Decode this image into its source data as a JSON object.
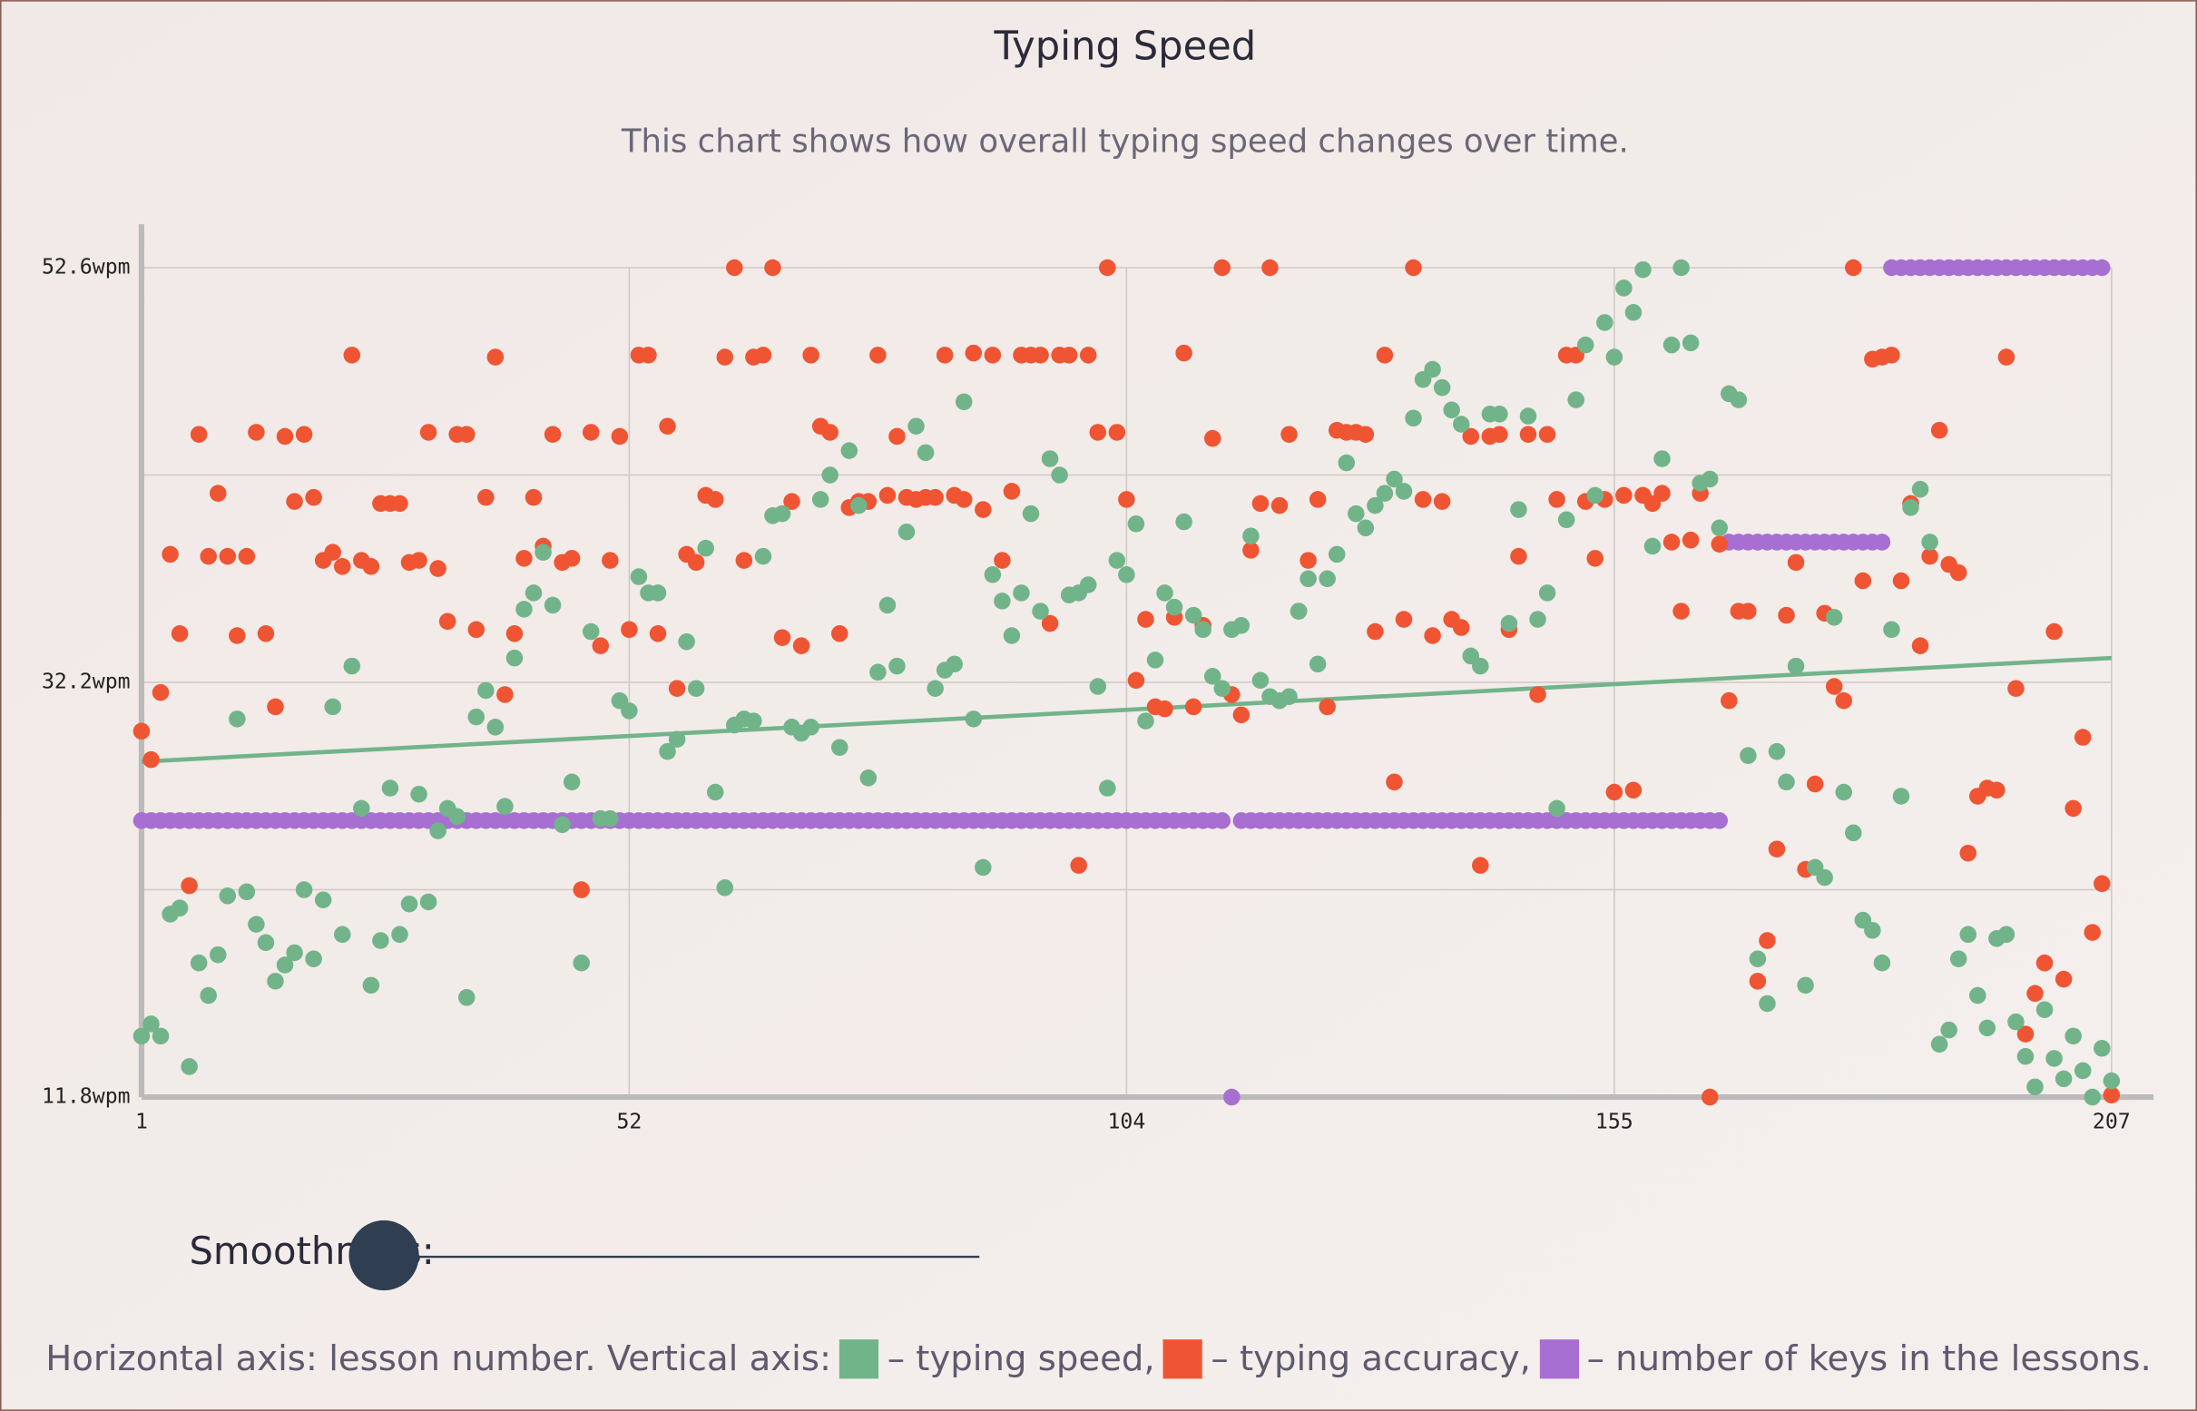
{
  "chart_data": {
    "type": "scatter",
    "title": "Typing Speed",
    "subtitle": "This chart shows how overall typing speed changes over time.",
    "xlim": [
      1,
      207
    ],
    "xticks": [
      1,
      52,
      104,
      155,
      207
    ],
    "ylim": [
      11.8,
      52.6
    ],
    "yticks": [
      {
        "value": 11.8,
        "label": "11.8wpm"
      },
      {
        "value": 32.2,
        "label": "32.2wpm"
      },
      {
        "value": 52.6,
        "label": "52.6wpm"
      }
    ],
    "ygrid": [
      22,
      42.4
    ],
    "grid": true,
    "caption": "Horizontal axis: lesson number. Vertical axis:",
    "series": [
      {
        "name": "typing speed",
        "legend_label": "– typing speed,",
        "color": "#72b48a",
        "trend": [
          28.3,
          33.4
        ],
        "values": [
          14.8,
          15.4,
          14.8,
          20.8,
          21.1,
          13.3,
          18.4,
          16.8,
          18.8,
          21.7,
          30.4,
          21.9,
          20.3,
          19.4,
          17.5,
          18.3,
          18.9,
          22.0,
          18.6,
          21.5,
          31.0,
          19.8,
          33.0,
          26.0,
          17.3,
          19.5,
          27.0,
          19.8,
          21.3,
          26.7,
          21.4,
          24.9,
          26.0,
          25.6,
          16.7,
          30.5,
          31.8,
          30.0,
          26.1,
          33.4,
          35.8,
          36.6,
          38.6,
          36.0,
          25.2,
          27.3,
          18.4,
          34.7,
          25.5,
          25.5,
          31.3,
          30.8,
          37.4,
          36.6,
          36.6,
          28.8,
          29.4,
          34.2,
          31.9,
          38.8,
          26.8,
          22.1,
          30.1,
          30.4,
          30.3,
          38.4,
          40.4,
          40.5,
          30.0,
          29.7,
          30.0,
          41.2,
          42.4,
          29.0,
          43.6,
          40.9,
          27.5,
          32.7,
          36.0,
          33.0,
          39.6,
          44.8,
          43.5,
          31.9,
          32.8,
          33.1,
          46.0,
          30.4,
          23.1,
          37.5,
          36.2,
          34.5,
          36.6,
          40.5,
          35.7,
          43.2,
          42.4,
          36.5,
          36.6,
          37.0,
          32.0,
          27.0,
          38.2,
          37.5,
          40.0,
          30.3,
          33.3,
          36.6,
          35.9,
          40.1,
          35.5,
          34.8,
          32.5,
          31.9,
          34.8,
          35.0,
          39.4,
          32.3,
          31.5,
          31.3,
          31.5,
          35.7,
          37.3,
          33.1,
          37.3,
          38.5,
          43.0,
          40.5,
          39.8,
          40.9,
          41.5,
          42.2,
          41.6,
          45.2,
          47.1,
          47.6,
          46.7,
          45.6,
          44.9,
          33.5,
          33.0,
          45.4,
          45.4,
          35.1,
          40.7,
          45.3,
          35.3,
          36.6,
          26.0,
          40.2,
          46.1,
          48.8,
          41.4,
          49.9,
          48.2,
          51.6,
          50.4,
          52.5,
          38.9,
          43.2,
          48.8,
          52.6,
          48.9,
          42.0,
          42.2,
          39.8,
          46.4,
          46.1,
          28.6,
          18.6,
          16.4,
          28.8,
          27.3,
          33.0,
          17.3,
          23.1,
          22.6,
          35.4,
          26.8,
          24.8,
          20.5,
          20.0,
          18.4,
          34.8,
          26.6,
          40.8,
          41.7,
          39.1,
          14.4,
          15.1,
          18.6,
          19.8,
          16.8,
          15.2,
          19.6,
          19.8,
          15.5,
          13.8,
          12.3,
          16.1,
          13.7,
          12.7,
          14.8,
          13.1,
          11.8,
          14.2,
          12.6
        ]
      },
      {
        "name": "typing accuracy",
        "legend_label": "– typing accuracy,",
        "color": "#ef5533",
        "values": [
          29.8,
          28.4,
          31.7,
          38.5,
          34.6,
          22.2,
          44.4,
          38.4,
          41.5,
          38.4,
          34.5,
          38.4,
          44.5,
          34.6,
          31.0,
          44.3,
          41.1,
          44.4,
          41.3,
          38.2,
          38.6,
          37.9,
          48.3,
          38.2,
          37.9,
          41.0,
          41.0,
          41.0,
          38.1,
          38.2,
          44.5,
          37.8,
          35.2,
          44.4,
          44.4,
          34.8,
          41.3,
          48.2,
          31.6,
          34.6,
          38.3,
          41.3,
          38.9,
          44.4,
          38.1,
          38.3,
          22.0,
          44.5,
          34.0,
          38.2,
          44.3,
          34.8,
          48.3,
          48.3,
          34.6,
          44.8,
          31.9,
          38.5,
          38.1,
          41.4,
          41.2,
          48.2,
          52.6,
          38.2,
          48.2,
          48.3,
          52.6,
          34.4,
          41.1,
          34.0,
          48.3,
          44.8,
          44.5,
          34.6,
          40.8,
          41.1,
          41.1,
          48.3,
          41.4,
          44.3,
          41.3,
          41.2,
          41.3,
          41.3,
          48.3,
          41.4,
          41.2,
          48.4,
          40.7,
          48.3,
          38.2,
          41.6,
          48.3,
          48.3,
          48.3,
          35.1,
          48.3,
          48.3,
          23.2,
          48.3,
          44.5,
          52.6,
          44.5,
          41.2,
          32.3,
          35.3,
          31.0,
          30.9,
          35.4,
          48.4,
          31.0,
          35.0,
          44.2,
          52.6,
          31.6,
          30.6,
          38.7,
          41.0,
          52.6,
          40.9,
          44.4,
          35.7,
          38.2,
          41.2,
          31.0,
          44.6,
          44.5,
          44.5,
          44.4,
          34.7,
          48.3,
          27.3,
          35.3,
          52.6,
          41.2,
          34.5,
          41.1,
          35.3,
          34.9,
          44.3,
          23.2,
          44.3,
          44.4,
          34.8,
          38.4,
          44.4,
          31.6,
          44.4,
          41.2,
          48.3,
          48.3,
          41.1,
          38.3,
          41.2,
          26.8,
          41.4,
          26.9,
          41.4,
          41.0,
          41.5,
          39.1,
          35.7,
          39.2,
          41.5,
          11.8,
          39.0,
          31.3,
          35.7,
          35.7,
          17.5,
          19.5,
          24.0,
          35.5,
          38.1,
          23.0,
          27.2,
          35.6,
          32.0,
          31.3,
          52.6,
          37.2,
          48.1,
          48.2,
          48.3,
          37.2,
          41.0,
          34.0,
          38.4,
          44.6,
          38.0,
          37.6,
          23.8,
          26.6,
          27.0,
          26.9,
          48.2,
          31.9,
          14.9,
          16.9,
          18.4,
          34.7,
          17.6,
          26.0,
          29.5,
          19.9,
          22.3,
          11.9
        ]
      },
      {
        "name": "number of keys in the lessons",
        "legend_label": "– number of keys in the lessons.",
        "color": "#a66fd1",
        "values": [
          25.4,
          25.4,
          25.4,
          25.4,
          25.4,
          25.4,
          25.4,
          25.4,
          25.4,
          25.4,
          25.4,
          25.4,
          25.4,
          25.4,
          25.4,
          25.4,
          25.4,
          25.4,
          25.4,
          25.4,
          25.4,
          25.4,
          25.4,
          25.4,
          25.4,
          25.4,
          25.4,
          25.4,
          25.4,
          25.4,
          25.4,
          25.4,
          25.4,
          25.4,
          25.4,
          25.4,
          25.4,
          25.4,
          25.4,
          25.4,
          25.4,
          25.4,
          25.4,
          25.4,
          25.4,
          25.4,
          25.4,
          25.4,
          25.4,
          25.4,
          25.4,
          25.4,
          25.4,
          25.4,
          25.4,
          25.4,
          25.4,
          25.4,
          25.4,
          25.4,
          25.4,
          25.4,
          25.4,
          25.4,
          25.4,
          25.4,
          25.4,
          25.4,
          25.4,
          25.4,
          25.4,
          25.4,
          25.4,
          25.4,
          25.4,
          25.4,
          25.4,
          25.4,
          25.4,
          25.4,
          25.4,
          25.4,
          25.4,
          25.4,
          25.4,
          25.4,
          25.4,
          25.4,
          25.4,
          25.4,
          25.4,
          25.4,
          25.4,
          25.4,
          25.4,
          25.4,
          25.4,
          25.4,
          25.4,
          25.4,
          25.4,
          25.4,
          25.4,
          25.4,
          25.4,
          25.4,
          25.4,
          25.4,
          25.4,
          25.4,
          25.4,
          25.4,
          25.4,
          25.4,
          11.8,
          25.4,
          25.4,
          25.4,
          25.4,
          25.4,
          25.4,
          25.4,
          25.4,
          25.4,
          25.4,
          25.4,
          25.4,
          25.4,
          25.4,
          25.4,
          25.4,
          25.4,
          25.4,
          25.4,
          25.4,
          25.4,
          25.4,
          25.4,
          25.4,
          25.4,
          25.4,
          25.4,
          25.4,
          25.4,
          25.4,
          25.4,
          25.4,
          25.4,
          25.4,
          25.4,
          25.4,
          25.4,
          25.4,
          25.4,
          25.4,
          25.4,
          25.4,
          25.4,
          25.4,
          25.4,
          25.4,
          25.4,
          25.4,
          25.4,
          25.4,
          25.4,
          39.1,
          39.1,
          39.1,
          39.1,
          39.1,
          39.1,
          39.1,
          39.1,
          39.1,
          39.1,
          39.1,
          39.1,
          39.1,
          39.1,
          39.1,
          39.1,
          39.1,
          52.6,
          52.6,
          52.6,
          52.6,
          52.6,
          52.6,
          52.6,
          52.6,
          52.6,
          52.6,
          52.6,
          52.6,
          52.6,
          52.6,
          52.6,
          52.6,
          52.6,
          52.6,
          52.6,
          52.6,
          52.6,
          52.6,
          52.6
        ]
      }
    ]
  },
  "controls": {
    "smoothness": {
      "label": "Smoothness:"
    }
  }
}
